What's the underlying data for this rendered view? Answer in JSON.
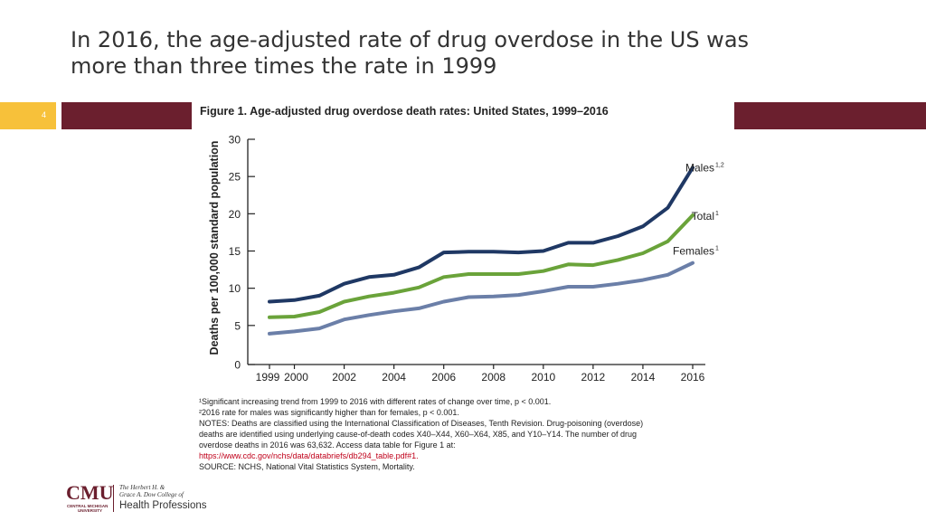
{
  "slide": {
    "title_line1": "In 2016, the age-adjusted rate of drug overdose in the US was",
    "title_line2": "more than three times the rate in 1999",
    "page_number": "4"
  },
  "colors": {
    "band": "#6b1f2e",
    "page_box": "#f7c13a",
    "males": "#1f3864",
    "total": "#6aa33a",
    "females": "#6b7fa8"
  },
  "chart_data": {
    "type": "line",
    "title": "Figure 1. Age-adjusted drug overdose death rates: United States, 1999–2016",
    "xlabel": "",
    "ylabel": "Deaths per 100,000 standard population",
    "ylim": [
      0,
      30
    ],
    "xlim": [
      1999,
      2016
    ],
    "y_ticks": [
      "0",
      "5",
      "10",
      "15",
      "20",
      "25",
      "30"
    ],
    "x_ticks": [
      "1999",
      "2000",
      "2002",
      "2004",
      "2006",
      "2008",
      "2010",
      "2012",
      "2014",
      "2016"
    ],
    "x": [
      1999,
      2000,
      2001,
      2002,
      2003,
      2004,
      2005,
      2006,
      2007,
      2008,
      2009,
      2010,
      2011,
      2012,
      2013,
      2014,
      2015,
      2016
    ],
    "grid": false,
    "series": [
      {
        "name": "Males",
        "label": "Males",
        "superscript": "1,2",
        "color_key": "males",
        "values": [
          8.2,
          8.4,
          9.0,
          10.6,
          11.5,
          11.8,
          12.8,
          14.8,
          14.9,
          14.9,
          14.8,
          15.0,
          16.1,
          16.1,
          17.0,
          18.3,
          20.8,
          26.2
        ]
      },
      {
        "name": "Total",
        "label": "Total",
        "superscript": "1",
        "color_key": "total",
        "values": [
          6.1,
          6.2,
          6.8,
          8.2,
          8.9,
          9.4,
          10.1,
          11.5,
          11.9,
          11.9,
          11.9,
          12.3,
          13.2,
          13.1,
          13.8,
          14.7,
          16.3,
          19.8
        ]
      },
      {
        "name": "Females",
        "label": "Females",
        "superscript": "1",
        "color_key": "females",
        "values": [
          3.9,
          4.2,
          4.6,
          5.8,
          6.4,
          6.9,
          7.3,
          8.2,
          8.8,
          8.9,
          9.1,
          9.6,
          10.2,
          10.2,
          10.6,
          11.1,
          11.8,
          13.4
        ]
      }
    ]
  },
  "notes": {
    "line1": "¹Significant increasing trend from 1999 to 2016 with different rates of change over time, p < 0.001.",
    "line2": "²2016 rate for males was significantly higher than for females, p < 0.001.",
    "line3": "NOTES: Deaths are classified using the International Classification of Diseases, Tenth Revision. Drug-poisoning (overdose)",
    "line4": "deaths are identified using underlying cause-of-death codes X40–X44, X60–X64, X85, and Y10–Y14.  The number of drug",
    "line5": "overdose deaths in 2016 was 63,632. Access data table for Figure 1 at:",
    "url": "https://www.cdc.gov/nchs/data/databriefs/db294_table.pdf#1.",
    "source": "SOURCE: NCHS, National Vital Statistics System, Mortality."
  },
  "logo": {
    "cmu": "CMU",
    "cmu_sub1": "CENTRAL MICHIGAN",
    "cmu_sub2": "UNIVERSITY",
    "college_line1": "The Herbert H. &",
    "college_line2": "Grace A. Dow College of",
    "health": "Health Professions"
  }
}
